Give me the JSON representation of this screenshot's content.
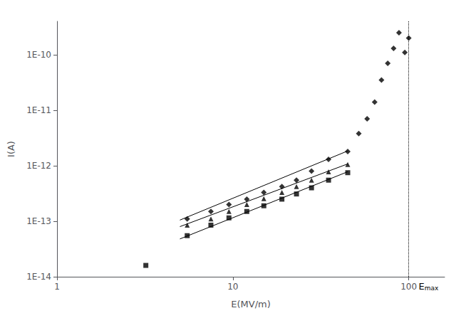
{
  "chart_data": {
    "type": "scatter",
    "xlabel": "E(MV/m)",
    "ylabel": "I(A)",
    "log": true,
    "grid": false,
    "xlim": [
      1,
      160
    ],
    "ylim": [
      1e-14,
      4e-10
    ],
    "xticks": [
      1,
      10,
      100
    ],
    "yticks": [
      {
        "value": 1e-14,
        "label": "1E-14"
      },
      {
        "value": 1e-13,
        "label": "1E-13"
      },
      {
        "value": 1e-12,
        "label": "1E-12"
      },
      {
        "value": 1e-11,
        "label": "1E-11"
      },
      {
        "value": 1e-10,
        "label": "1E-10"
      }
    ],
    "series": [
      {
        "type": "line",
        "line_style": "solid",
        "color": "black",
        "x": [
          5.0,
          45
        ],
        "values": [
          4.8e-14,
          7.8e-13
        ]
      },
      {
        "type": "line",
        "line_style": "solid",
        "color": "black",
        "x": [
          5.0,
          45
        ],
        "values": [
          8e-14,
          1.08e-12
        ]
      },
      {
        "type": "line",
        "line_style": "solid",
        "color": "black",
        "x": [
          5.0,
          45
        ],
        "values": [
          1.05e-13,
          1.85e-12
        ]
      },
      {
        "type": "scatter",
        "marker": "square",
        "color": "black",
        "x": [
          3.2,
          5.5,
          7.5,
          9.5,
          12,
          15,
          19,
          23,
          28,
          35,
          45
        ],
        "values": [
          1.6e-14,
          5.5e-14,
          8.5e-14,
          1.15e-13,
          1.5e-13,
          1.9e-13,
          2.5e-13,
          3.1e-13,
          4e-13,
          5.5e-13,
          7.5e-13
        ]
      },
      {
        "type": "scatter",
        "marker": "triangle",
        "color": "black",
        "x": [
          5.5,
          7.5,
          9.5,
          12,
          15,
          19,
          23,
          28,
          35,
          45
        ],
        "values": [
          8.5e-14,
          1.1e-13,
          1.5e-13,
          2e-13,
          2.55e-13,
          3.3e-13,
          4.2e-13,
          5.5e-13,
          7.8e-13,
          1.05e-12
        ]
      },
      {
        "type": "scatter",
        "marker": "diamond",
        "color": "black",
        "x": [
          5.5,
          7.5,
          9.5,
          12,
          15,
          19,
          23,
          28,
          35,
          45,
          52,
          58,
          64,
          70,
          76,
          82,
          88,
          95,
          100
        ],
        "values": [
          1.1e-13,
          1.5e-13,
          2e-13,
          2.5e-13,
          3.3e-13,
          4.2e-13,
          5.5e-13,
          8e-13,
          1.3e-12,
          1.8e-12,
          3.8e-12,
          7e-12,
          1.4e-11,
          3.5e-11,
          7e-11,
          1.3e-10,
          2.5e-10,
          1.1e-10,
          2e-10
        ]
      }
    ],
    "annotations": [
      {
        "text": "Emax",
        "x": 100,
        "line_style": "dotted",
        "color": "black"
      }
    ]
  }
}
